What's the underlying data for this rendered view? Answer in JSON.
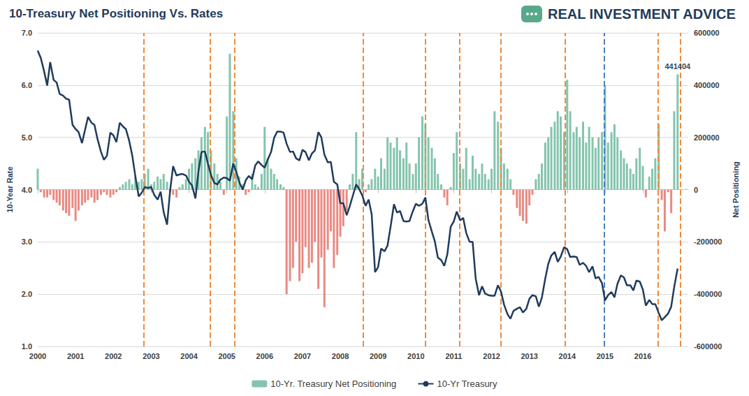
{
  "chart_data": {
    "type": "bar",
    "title": "10-Treasury Net Positioning Vs. Rates",
    "logo": "REAL INVESTMENT ADVICE",
    "ylabel": "10-Year Rate",
    "y2label": "Net Positioning",
    "xlim": [
      2000,
      2017.2
    ],
    "xticks": [
      2000,
      2001,
      2002,
      2003,
      2004,
      2005,
      2006,
      2007,
      2008,
      2009,
      2010,
      2011,
      2012,
      2013,
      2014,
      2015,
      2016
    ],
    "ylim": [
      1,
      7
    ],
    "yticks": [
      {
        "value": 1,
        "label": "1.0"
      },
      {
        "value": 2,
        "label": "2.0"
      },
      {
        "value": 3,
        "label": "3.0"
      },
      {
        "value": 4,
        "label": "4.0"
      },
      {
        "value": 5,
        "label": "5.0"
      },
      {
        "value": 6,
        "label": "6.0"
      },
      {
        "value": 7,
        "label": "7.0"
      }
    ],
    "y2lim": [
      -600000,
      600000
    ],
    "y2ticks": [
      -600000,
      -400000,
      -200000,
      0,
      200000,
      400000,
      600000
    ],
    "grid": true,
    "legend": "bottom",
    "x": [
      2000,
      2000.08,
      2000.17,
      2000.25,
      2000.33,
      2000.42,
      2000.5,
      2000.58,
      2000.67,
      2000.75,
      2000.83,
      2000.92,
      2001,
      2001.08,
      2001.17,
      2001.25,
      2001.33,
      2001.42,
      2001.5,
      2001.58,
      2001.67,
      2001.75,
      2001.83,
      2001.92,
      2002,
      2002.08,
      2002.17,
      2002.25,
      2002.33,
      2002.42,
      2002.5,
      2002.58,
      2002.67,
      2002.75,
      2002.83,
      2002.92,
      2003,
      2003.08,
      2003.17,
      2003.25,
      2003.33,
      2003.42,
      2003.5,
      2003.58,
      2003.67,
      2003.75,
      2003.83,
      2003.92,
      2004,
      2004.08,
      2004.17,
      2004.25,
      2004.33,
      2004.42,
      2004.5,
      2004.58,
      2004.67,
      2004.75,
      2004.83,
      2004.92,
      2005,
      2005.08,
      2005.17,
      2005.25,
      2005.33,
      2005.42,
      2005.5,
      2005.58,
      2005.67,
      2005.75,
      2005.83,
      2005.92,
      2006,
      2006.08,
      2006.17,
      2006.25,
      2006.33,
      2006.42,
      2006.5,
      2006.58,
      2006.67,
      2006.75,
      2006.83,
      2006.92,
      2007,
      2007.08,
      2007.17,
      2007.25,
      2007.33,
      2007.42,
      2007.5,
      2007.58,
      2007.67,
      2007.75,
      2007.83,
      2007.92,
      2008,
      2008.08,
      2008.17,
      2008.25,
      2008.33,
      2008.42,
      2008.5,
      2008.58,
      2008.67,
      2008.75,
      2008.83,
      2008.92,
      2009,
      2009.08,
      2009.17,
      2009.25,
      2009.33,
      2009.42,
      2009.5,
      2009.58,
      2009.67,
      2009.75,
      2009.83,
      2009.92,
      2010,
      2010.08,
      2010.17,
      2010.25,
      2010.33,
      2010.42,
      2010.5,
      2010.58,
      2010.67,
      2010.75,
      2010.83,
      2010.92,
      2011,
      2011.08,
      2011.17,
      2011.25,
      2011.33,
      2011.42,
      2011.5,
      2011.58,
      2011.67,
      2011.75,
      2011.83,
      2011.92,
      2012,
      2012.08,
      2012.17,
      2012.25,
      2012.33,
      2012.42,
      2012.5,
      2012.58,
      2012.67,
      2012.75,
      2012.83,
      2012.92,
      2013,
      2013.08,
      2013.17,
      2013.25,
      2013.33,
      2013.42,
      2013.5,
      2013.58,
      2013.67,
      2013.75,
      2013.83,
      2013.92,
      2014,
      2014.08,
      2014.17,
      2014.25,
      2014.33,
      2014.42,
      2014.5,
      2014.58,
      2014.67,
      2014.75,
      2014.83,
      2014.92,
      2015,
      2015.08,
      2015.17,
      2015.25,
      2015.33,
      2015.42,
      2015.5,
      2015.58,
      2015.67,
      2015.75,
      2015.83,
      2015.92,
      2016,
      2016.08,
      2016.17,
      2016.25,
      2016.33,
      2016.42,
      2016.5,
      2016.58,
      2016.67,
      2016.75,
      2016.83,
      2016.92
    ],
    "series": [
      {
        "name": "10-Yr. Treasury Net Positioning",
        "type": "bar",
        "axis": "y2",
        "color": "#84c4ad",
        "colors": [
          "#84c4ad",
          "#e98a82",
          "#e98a82",
          "#e98a82",
          "#e98a82",
          "#e98a82",
          "#e98a82",
          "#e98a82",
          "#e98a82",
          "#e98a82",
          "#e98a82",
          "#e98a82",
          "#e98a82",
          "#e98a82",
          "#e98a82",
          "#e98a82",
          "#e98a82",
          "#e98a82",
          "#e98a82",
          "#e98a82",
          "#e98a82",
          "#e98a82",
          "#e98a82",
          "#e98a82",
          "#e98a82",
          "#e98a82",
          "#84c4ad",
          "#84c4ad",
          "#84c4ad",
          "#84c4ad",
          "#84c4ad",
          "#84c4ad",
          "#84c4ad",
          "#84c4ad",
          "#84c4ad",
          "#84c4ad",
          "#84c4ad",
          "#84c4ad",
          "#84c4ad",
          "#84c4ad",
          "#84c4ad",
          "#84c4ad",
          "#e98a82",
          "#e98a82",
          "#e98a82",
          "#84c4ad",
          "#84c4ad",
          "#84c4ad",
          "#84c4ad",
          "#84c4ad",
          "#84c4ad",
          "#84c4ad",
          "#84c4ad",
          "#84c4ad",
          "#84c4ad",
          "#84c4ad",
          "#84c4ad",
          "#84c4ad",
          "#84c4ad",
          "#e98a82",
          "#84c4ad",
          "#84c4ad",
          "#84c4ad",
          "#84c4ad",
          "#84c4ad",
          "#84c4ad",
          "#e98a82",
          "#e98a82",
          "#84c4ad",
          "#84c4ad",
          "#84c4ad",
          "#84c4ad",
          "#84c4ad",
          "#84c4ad",
          "#84c4ad",
          "#84c4ad",
          "#84c4ad",
          "#84c4ad",
          "#84c4ad",
          "#e98a82",
          "#e98a82",
          "#e98a82",
          "#e98a82",
          "#e98a82",
          "#e98a82",
          "#e98a82",
          "#e98a82",
          "#e98a82",
          "#e98a82",
          "#e98a82",
          "#e98a82",
          "#e98a82",
          "#e98a82",
          "#e98a82",
          "#e98a82",
          "#e98a82",
          "#e98a82",
          "#e98a82",
          "#e98a82",
          "#84c4ad",
          "#84c4ad",
          "#84c4ad",
          "#84c4ad",
          "#84c4ad",
          "#e98a82",
          "#84c4ad",
          "#84c4ad",
          "#84c4ad",
          "#84c4ad",
          "#84c4ad",
          "#84c4ad",
          "#84c4ad",
          "#84c4ad",
          "#84c4ad",
          "#84c4ad",
          "#84c4ad",
          "#84c4ad",
          "#84c4ad",
          "#84c4ad",
          "#84c4ad",
          "#84c4ad",
          "#84c4ad",
          "#84c4ad",
          "#84c4ad",
          "#84c4ad",
          "#84c4ad",
          "#84c4ad",
          "#84c4ad",
          "#84c4ad",
          "#e98a82",
          "#e98a82",
          "#84c4ad",
          "#84c4ad",
          "#84c4ad",
          "#84c4ad",
          "#84c4ad",
          "#84c4ad",
          "#84c4ad",
          "#84c4ad",
          "#84c4ad",
          "#84c4ad",
          "#84c4ad",
          "#84c4ad",
          "#84c4ad",
          "#84c4ad",
          "#84c4ad",
          "#84c4ad",
          "#84c4ad",
          "#84c4ad",
          "#84c4ad",
          "#84c4ad",
          "#e98a82",
          "#e98a82",
          "#e98a82",
          "#e98a82",
          "#e98a82",
          "#e98a82",
          "#e98a82",
          "#84c4ad",
          "#84c4ad",
          "#84c4ad",
          "#84c4ad",
          "#84c4ad",
          "#84c4ad",
          "#84c4ad",
          "#84c4ad",
          "#84c4ad",
          "#84c4ad",
          "#84c4ad",
          "#84c4ad",
          "#84c4ad",
          "#84c4ad",
          "#84c4ad",
          "#84c4ad",
          "#84c4ad",
          "#84c4ad",
          "#84c4ad",
          "#84c4ad",
          "#84c4ad",
          "#84c4ad",
          "#84c4ad",
          "#84c4ad",
          "#84c4ad",
          "#84c4ad",
          "#84c4ad",
          "#84c4ad",
          "#84c4ad",
          "#84c4ad",
          "#84c4ad",
          "#84c4ad",
          "#84c4ad",
          "#84c4ad",
          "#84c4ad",
          "#e98a82",
          "#84c4ad",
          "#84c4ad",
          "#84c4ad",
          "#84c4ad",
          "#e98a82",
          "#e98a82",
          "#e98a82",
          "#e98a82",
          "#84c4ad",
          "#84c4ad"
        ],
        "values": [
          80000,
          -10000,
          -30000,
          -30000,
          -20000,
          -40000,
          -50000,
          -60000,
          -80000,
          -90000,
          -100000,
          -70000,
          -120000,
          -80000,
          -60000,
          -50000,
          -40000,
          -30000,
          -50000,
          -40000,
          -20000,
          -10000,
          -20000,
          -30000,
          -20000,
          -10000,
          10000,
          20000,
          30000,
          40000,
          20000,
          50000,
          30000,
          40000,
          60000,
          80000,
          20000,
          30000,
          50000,
          40000,
          60000,
          30000,
          -10000,
          -20000,
          -30000,
          10000,
          20000,
          40000,
          80000,
          100000,
          120000,
          150000,
          200000,
          240000,
          220000,
          150000,
          100000,
          60000,
          30000,
          -20000,
          280000,
          520000,
          300000,
          120000,
          50000,
          20000,
          -20000,
          -10000,
          60000,
          20000,
          10000,
          60000,
          240000,
          120000,
          80000,
          60000,
          40000,
          20000,
          10000,
          -400000,
          -350000,
          -300000,
          -200000,
          -350000,
          -320000,
          -220000,
          -300000,
          -280000,
          -200000,
          -380000,
          -260000,
          -450000,
          -230000,
          -160000,
          -300000,
          -250000,
          -180000,
          -140000,
          -80000,
          20000,
          60000,
          220000,
          40000,
          80000,
          -10000,
          20000,
          40000,
          80000,
          50000,
          120000,
          80000,
          200000,
          180000,
          160000,
          200000,
          150000,
          120000,
          180000,
          100000,
          60000,
          100000,
          200000,
          280000,
          250000,
          200000,
          160000,
          120000,
          60000,
          20000,
          -30000,
          -60000,
          10000,
          140000,
          220000,
          100000,
          80000,
          160000,
          40000,
          130000,
          80000,
          60000,
          100000,
          60000,
          40000,
          80000,
          300000,
          260000,
          160000,
          100000,
          80000,
          40000,
          -20000,
          -70000,
          -100000,
          -120000,
          -130000,
          -60000,
          -20000,
          40000,
          60000,
          100000,
          180000,
          200000,
          240000,
          260000,
          300000,
          280000,
          220000,
          420000,
          300000,
          220000,
          240000,
          200000,
          260000,
          180000,
          240000,
          200000,
          160000,
          200000,
          220000,
          400000,
          180000,
          220000,
          250000,
          200000,
          150000,
          120000,
          100000,
          80000,
          60000,
          120000,
          160000,
          90000,
          -30000,
          50000,
          80000,
          120000,
          250000,
          -40000,
          -160000,
          -10000,
          -90000,
          300000,
          441404
        ]
      },
      {
        "name": "10-Yr Treasury",
        "type": "line",
        "color": "#1f3b5c",
        "values": [
          6.66,
          6.52,
          6.26,
          5.99,
          6.44,
          6.1,
          6.05,
          5.83,
          5.8,
          5.74,
          5.72,
          5.24,
          5.16,
          5.1,
          4.89,
          5.14,
          5.39,
          5.28,
          5.24,
          4.97,
          4.73,
          4.57,
          4.65,
          5.09,
          5.04,
          4.91,
          5.28,
          5.21,
          5.16,
          4.93,
          4.65,
          4.26,
          3.87,
          3.94,
          4.05,
          4.03,
          4.05,
          3.9,
          3.81,
          3.96,
          3.57,
          3.33,
          3.98,
          4.45,
          4.27,
          4.29,
          4.3,
          4.27,
          4.15,
          4.08,
          3.83,
          4.35,
          4.72,
          4.73,
          4.5,
          4.28,
          4.13,
          4.1,
          4.19,
          4.23,
          4.22,
          4.17,
          4.5,
          4.34,
          4.14,
          4.0,
          4.18,
          4.26,
          4.2,
          4.46,
          4.54,
          4.47,
          4.42,
          4.57,
          4.72,
          4.99,
          5.11,
          5.11,
          5.09,
          4.88,
          4.72,
          4.73,
          4.6,
          4.56,
          4.76,
          4.72,
          4.56,
          4.69,
          4.75,
          5.1,
          5.0,
          4.67,
          4.52,
          4.53,
          4.15,
          4.1,
          3.74,
          3.74,
          3.51,
          3.68,
          3.88,
          4.1,
          4.01,
          3.89,
          3.69,
          3.81,
          3.53,
          2.42,
          2.52,
          2.87,
          2.82,
          2.93,
          3.29,
          3.72,
          3.56,
          3.59,
          3.4,
          3.39,
          3.4,
          3.59,
          3.73,
          3.69,
          3.73,
          3.85,
          3.42,
          3.2,
          3.01,
          2.7,
          2.65,
          2.54,
          2.76,
          3.29,
          3.39,
          3.58,
          3.41,
          3.46,
          3.17,
          3.0,
          3.0,
          2.3,
          1.98,
          2.15,
          2.01,
          1.98,
          1.97,
          1.97,
          2.17,
          2.05,
          1.8,
          1.62,
          1.53,
          1.68,
          1.72,
          1.75,
          1.65,
          1.72,
          1.91,
          1.98,
          1.96,
          1.76,
          1.93,
          2.3,
          2.58,
          2.74,
          2.81,
          2.62,
          2.72,
          2.9,
          2.86,
          2.71,
          2.72,
          2.71,
          2.56,
          2.6,
          2.54,
          2.42,
          2.53,
          2.3,
          2.33,
          2.21,
          1.88,
          1.98,
          2.04,
          1.94,
          2.2,
          2.36,
          2.32,
          2.17,
          2.17,
          2.07,
          2.26,
          2.24,
          2.09,
          1.78,
          1.89,
          1.81,
          1.81,
          1.64,
          1.5,
          1.56,
          1.63,
          1.76,
          2.14,
          2.49
        ]
      }
    ],
    "annotations": {
      "texts": [
        {
          "text": "441404",
          "x": 2016.92,
          "y": 441404,
          "axis": "y2"
        }
      ],
      "vlines": [
        {
          "x": 2002.8,
          "color": "#f08a3c",
          "line_style": "dashed"
        },
        {
          "x": 2004.55,
          "color": "#f08a3c",
          "line_style": "dashed"
        },
        {
          "x": 2005.2,
          "color": "#f08a3c",
          "line_style": "dashed"
        },
        {
          "x": 2008.6,
          "color": "#f08a3c",
          "line_style": "dashed"
        },
        {
          "x": 2010.25,
          "color": "#f08a3c",
          "line_style": "dashed"
        },
        {
          "x": 2011.15,
          "color": "#f08a3c",
          "line_style": "dashed"
        },
        {
          "x": 2012.25,
          "color": "#f08a3c",
          "line_style": "dashed"
        },
        {
          "x": 2013.95,
          "color": "#f08a3c",
          "line_style": "dashed"
        },
        {
          "x": 2014.98,
          "color": "#4a7fc1",
          "line_style": "dashed"
        },
        {
          "x": 2016.4,
          "color": "#f08a3c",
          "line_style": "dashed"
        },
        {
          "x": 2017.0,
          "color": "#f08a3c",
          "line_style": "dashed"
        }
      ]
    }
  }
}
